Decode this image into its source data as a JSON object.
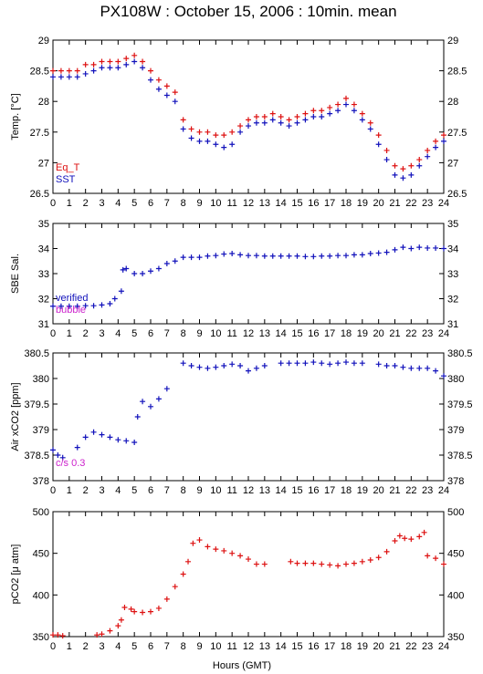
{
  "title": "PX108W : October 15, 2006 : 10min. mean",
  "xlabel": "Hours (GMT)",
  "colors": {
    "red": "#dd1111",
    "blue": "#1111bb",
    "magenta": "#cc22cc",
    "black": "#000000"
  },
  "chart_data": [
    {
      "type": "scatter",
      "ylabel": "Temp. [°C]",
      "xlim": [
        0,
        24
      ],
      "ylim": [
        26.5,
        29
      ],
      "yticks": [
        26.5,
        27,
        27.5,
        28,
        28.5,
        29
      ],
      "legend": [
        "Eq_T",
        "SST"
      ],
      "legend_placement": "bottom-left",
      "series": [
        {
          "name": "Eq_T",
          "color": "#dd1111",
          "x": [
            0,
            0.5,
            1,
            1.5,
            2,
            2.5,
            3,
            3.5,
            4,
            4.5,
            5,
            5.5,
            6,
            6.5,
            7,
            7.5,
            8,
            8.5,
            9,
            9.5,
            10,
            10.5,
            11,
            11.5,
            12,
            12.5,
            13,
            13.5,
            14,
            14.5,
            15,
            15.5,
            16,
            16.5,
            17,
            17.5,
            18,
            18.5,
            19,
            19.5,
            20,
            20.5,
            21,
            21.5,
            22,
            22.5,
            23,
            23.5,
            24
          ],
          "y": [
            28.5,
            28.5,
            28.5,
            28.5,
            28.6,
            28.6,
            28.65,
            28.65,
            28.65,
            28.7,
            28.75,
            28.65,
            28.5,
            28.35,
            28.25,
            28.15,
            27.7,
            27.55,
            27.5,
            27.5,
            27.45,
            27.45,
            27.5,
            27.6,
            27.7,
            27.75,
            27.75,
            27.8,
            27.75,
            27.7,
            27.75,
            27.8,
            27.85,
            27.85,
            27.9,
            27.95,
            28.05,
            27.95,
            27.8,
            27.65,
            27.45,
            27.2,
            26.95,
            26.9,
            26.95,
            27.05,
            27.2,
            27.35,
            27.45
          ]
        },
        {
          "name": "SST",
          "color": "#1111bb",
          "x": [
            0,
            0.5,
            1,
            1.5,
            2,
            2.5,
            3,
            3.5,
            4,
            4.5,
            5,
            5.5,
            6,
            6.5,
            7,
            7.5,
            8,
            8.5,
            9,
            9.5,
            10,
            10.5,
            11,
            11.5,
            12,
            12.5,
            13,
            13.5,
            14,
            14.5,
            15,
            15.5,
            16,
            16.5,
            17,
            17.5,
            18,
            18.5,
            19,
            19.5,
            20,
            20.5,
            21,
            21.5,
            22,
            22.5,
            23,
            23.5,
            24
          ],
          "y": [
            28.4,
            28.4,
            28.4,
            28.4,
            28.45,
            28.5,
            28.55,
            28.55,
            28.55,
            28.6,
            28.65,
            28.55,
            28.35,
            28.2,
            28.1,
            28.0,
            27.55,
            27.4,
            27.35,
            27.35,
            27.3,
            27.25,
            27.3,
            27.5,
            27.6,
            27.65,
            27.65,
            27.7,
            27.65,
            27.6,
            27.65,
            27.7,
            27.75,
            27.75,
            27.8,
            27.85,
            27.95,
            27.85,
            27.7,
            27.55,
            27.3,
            27.05,
            26.8,
            26.75,
            26.8,
            26.95,
            27.1,
            27.25,
            27.35
          ]
        }
      ]
    },
    {
      "type": "scatter",
      "ylabel": "SBE Sal.",
      "xlim": [
        0,
        24
      ],
      "ylim": [
        31,
        35
      ],
      "yticks": [
        31,
        32,
        33,
        34,
        35
      ],
      "legend": [
        "verified",
        "bubble"
      ],
      "legend_placement": "bottom-left",
      "series": [
        {
          "name": "verified",
          "color": "#1111bb",
          "x": [
            0,
            0.5,
            1,
            1.5,
            2,
            2.5,
            3,
            3.5,
            3.8,
            4.2,
            4.3,
            4.5,
            5,
            5.5,
            6,
            6.5,
            7,
            7.5,
            8,
            8.5,
            9,
            9.5,
            10,
            10.5,
            11,
            11.5,
            12,
            12.5,
            13,
            13.5,
            14,
            14.5,
            15,
            15.5,
            16,
            16.5,
            17,
            17.5,
            18,
            18.5,
            19,
            19.5,
            20,
            20.5,
            21,
            21.5,
            22,
            22.5,
            23,
            23.5,
            24
          ],
          "y": [
            31.7,
            31.7,
            31.7,
            31.7,
            31.72,
            31.72,
            31.75,
            31.8,
            32.0,
            32.3,
            33.15,
            33.2,
            33.0,
            33.0,
            33.1,
            33.2,
            33.4,
            33.5,
            33.65,
            33.65,
            33.65,
            33.7,
            33.72,
            33.78,
            33.8,
            33.75,
            33.72,
            33.72,
            33.7,
            33.7,
            33.7,
            33.7,
            33.7,
            33.68,
            33.68,
            33.7,
            33.7,
            33.72,
            33.72,
            33.75,
            33.75,
            33.8,
            33.82,
            33.85,
            33.95,
            34.05,
            34.0,
            34.05,
            34.02,
            34.02,
            34.0
          ]
        }
      ]
    },
    {
      "type": "scatter",
      "ylabel": "Air xCO2 [ppm]",
      "xlim": [
        0,
        24
      ],
      "ylim": [
        378,
        380.5
      ],
      "yticks": [
        378,
        378.5,
        379,
        379.5,
        380,
        380.5
      ],
      "annotation": "c/s 0.3",
      "series": [
        {
          "name": "Air xCO2",
          "color": "#1111bb",
          "x": [
            0,
            0.3,
            0.6,
            1.5,
            2,
            2.5,
            3,
            3.5,
            4,
            4.5,
            5,
            5.2,
            5.5,
            6,
            6.5,
            7,
            8,
            8.5,
            9,
            9.5,
            10,
            10.5,
            11,
            11.5,
            12,
            12.5,
            13,
            14,
            14.5,
            15,
            15.5,
            16,
            16.5,
            17,
            17.5,
            18,
            18.5,
            19,
            20,
            20.5,
            21,
            21.5,
            22,
            22.5,
            23,
            23.5,
            24
          ],
          "y": [
            378.6,
            378.5,
            378.45,
            378.65,
            378.85,
            378.95,
            378.9,
            378.85,
            378.8,
            378.78,
            378.75,
            379.25,
            379.55,
            379.45,
            379.6,
            379.8,
            380.3,
            380.25,
            380.22,
            380.2,
            380.22,
            380.25,
            380.28,
            380.25,
            380.15,
            380.2,
            380.25,
            380.3,
            380.3,
            380.3,
            380.3,
            380.32,
            380.3,
            380.28,
            380.3,
            380.32,
            380.3,
            380.3,
            380.28,
            380.25,
            380.25,
            380.22,
            380.2,
            380.2,
            380.2,
            380.15,
            380.05
          ]
        }
      ]
    },
    {
      "type": "scatter",
      "ylabel": "pCO2 [μ atm]",
      "xlim": [
        0,
        24
      ],
      "ylim": [
        350,
        500
      ],
      "yticks": [
        350,
        400,
        450,
        500
      ],
      "series": [
        {
          "name": "pCO2",
          "color": "#dd1111",
          "x": [
            0,
            0.3,
            0.6,
            2.7,
            3,
            3.5,
            4,
            4.2,
            4.4,
            4.8,
            5,
            5.5,
            6,
            6.5,
            7,
            7.5,
            8,
            8.3,
            8.6,
            9,
            9.5,
            10,
            10.5,
            11,
            11.5,
            12,
            12.5,
            13,
            14.6,
            15,
            15.5,
            16,
            16.5,
            17,
            17.5,
            18,
            18.5,
            19,
            19.5,
            20,
            20.5,
            21,
            21.3,
            21.6,
            22,
            22.5,
            22.8,
            23,
            23.5,
            24
          ],
          "y": [
            352,
            352,
            351,
            352,
            353,
            357,
            363,
            370,
            385,
            383,
            380,
            379,
            380,
            384,
            395,
            410,
            425,
            440,
            462,
            466,
            458,
            455,
            453,
            450,
            447,
            443,
            437,
            437,
            440,
            438,
            438,
            438,
            437,
            436,
            435,
            437,
            438,
            440,
            442,
            445,
            452,
            465,
            471,
            468,
            467,
            470,
            475,
            447,
            444,
            437
          ]
        }
      ]
    }
  ]
}
